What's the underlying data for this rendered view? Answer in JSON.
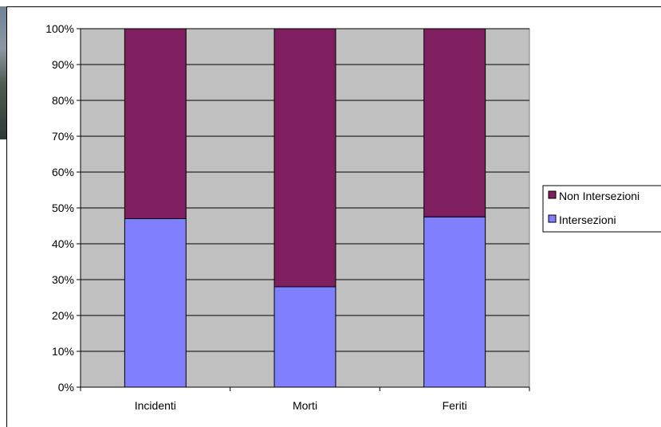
{
  "chart_data": {
    "type": "bar",
    "stacked": true,
    "percent": true,
    "categories": [
      "Incidenti",
      "Morti",
      "Feriti"
    ],
    "series": [
      {
        "name": "Intersezioni",
        "values": [
          47,
          28,
          47.5
        ],
        "color": "#8080ff"
      },
      {
        "name": "Non Intersezioni",
        "values": [
          53,
          72,
          52.5
        ],
        "color": "#7f1f5f"
      }
    ],
    "ylim": [
      0,
      100
    ],
    "y_ticks": [
      "0%",
      "10%",
      "20%",
      "30%",
      "40%",
      "50%",
      "60%",
      "70%",
      "80%",
      "90%",
      "100%"
    ],
    "grid": true,
    "plot_background": "#c0c0c0",
    "legend": {
      "placement": "right",
      "entries": [
        "Non Intersezioni",
        "Intersezioni"
      ]
    }
  }
}
